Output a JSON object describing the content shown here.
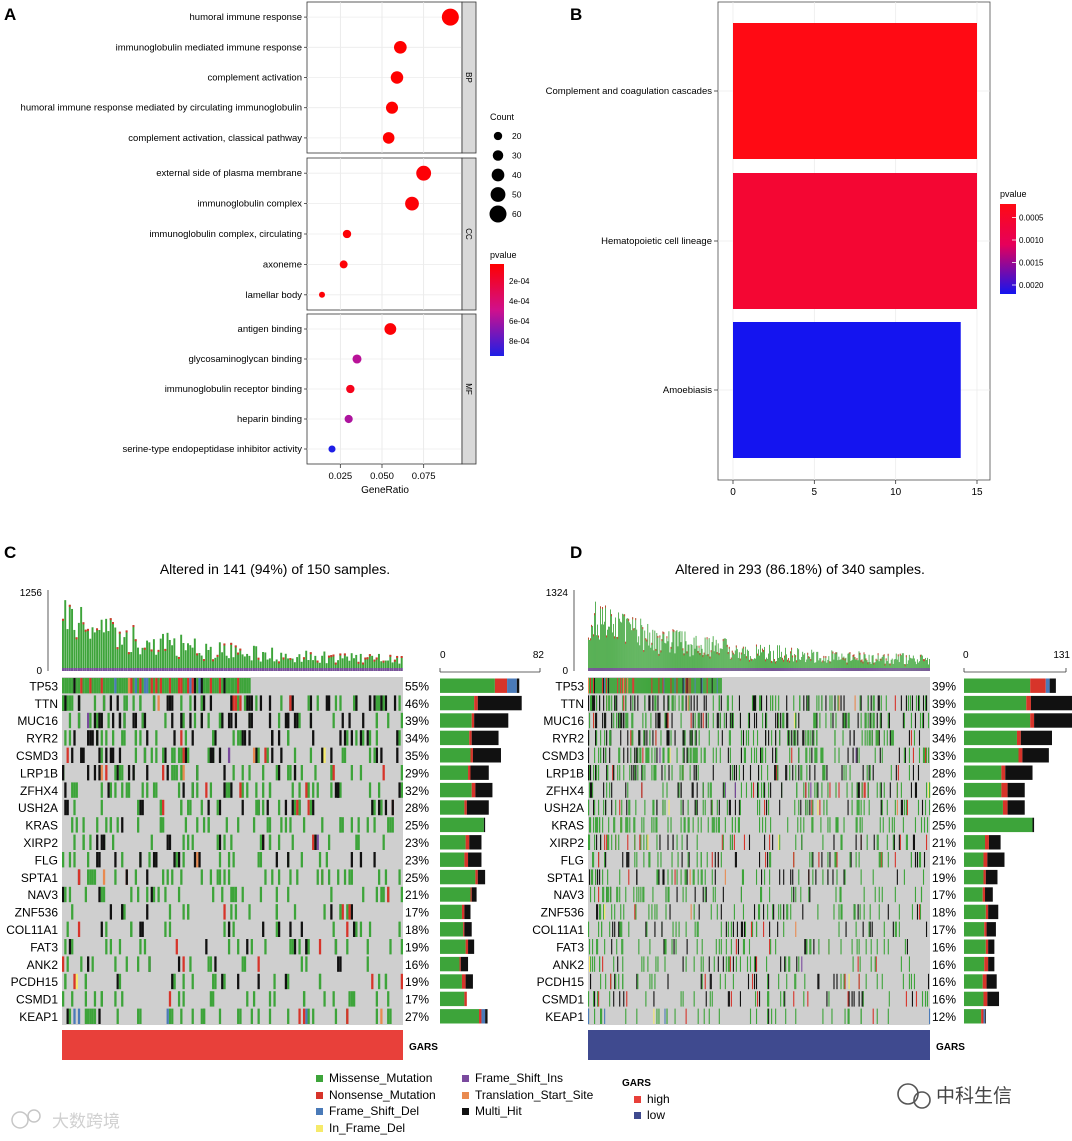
{
  "panels": {
    "A": "A",
    "B": "B",
    "C": "C",
    "D": "D"
  },
  "chart_data": [
    {
      "type": "scatter",
      "panel": "A",
      "title": "",
      "xlabel": "GeneRatio",
      "ylabel": "",
      "xticks": [
        "0.025",
        "0.050",
        "0.075"
      ],
      "xtick_values": [
        0.025,
        0.05,
        0.075
      ],
      "xlim": [
        0.005,
        0.098
      ],
      "facets": [
        {
          "name": "BP",
          "items": [
            {
              "term": "humoral immune response",
              "ratio": 0.091,
              "count": 60,
              "p": 3e-05
            },
            {
              "term": "immunoglobulin mediated immune response",
              "ratio": 0.061,
              "count": 40,
              "p": 3e-05
            },
            {
              "term": "complement activation",
              "ratio": 0.059,
              "count": 39,
              "p": 3e-05
            },
            {
              "term": "humoral immune response mediated by circulating immunoglobulin",
              "ratio": 0.056,
              "count": 37,
              "p": 3e-05
            },
            {
              "term": "complement activation, classical pathway",
              "ratio": 0.054,
              "count": 35,
              "p": 3e-05
            }
          ]
        },
        {
          "name": "CC",
          "items": [
            {
              "term": "external side of plasma membrane",
              "ratio": 0.075,
              "count": 50,
              "p": 5e-05
            },
            {
              "term": "immunoglobulin complex",
              "ratio": 0.068,
              "count": 45,
              "p": 5e-05
            },
            {
              "term": "immunoglobulin complex, circulating",
              "ratio": 0.029,
              "count": 20,
              "p": 5e-05
            },
            {
              "term": "axoneme",
              "ratio": 0.027,
              "count": 18,
              "p": 5e-05
            },
            {
              "term": "lamellar body",
              "ratio": 0.014,
              "count": 9,
              "p": 5e-05
            }
          ]
        },
        {
          "name": "MF",
          "items": [
            {
              "term": "antigen binding",
              "ratio": 0.055,
              "count": 36,
              "p": 5e-05
            },
            {
              "term": "glycosaminoglycan binding",
              "ratio": 0.035,
              "count": 23,
              "p": 0.00055
            },
            {
              "term": "immunoglobulin receptor binding",
              "ratio": 0.031,
              "count": 20,
              "p": 0.00012
            },
            {
              "term": "heparin binding",
              "ratio": 0.03,
              "count": 19,
              "p": 0.00058
            },
            {
              "term": "serine-type endopeptidase inhibitor activity",
              "ratio": 0.02,
              "count": 14,
              "p": 0.00095
            }
          ]
        }
      ],
      "size_legend": {
        "title": "Count",
        "values": [
          20,
          30,
          40,
          50,
          60
        ]
      },
      "color_legend": {
        "title": "pvalue",
        "labels": [
          "2e-04",
          "4e-04",
          "6e-04",
          "8e-04"
        ],
        "values": [
          0.0002,
          0.0004,
          0.0006,
          0.0008
        ],
        "range": [
          3e-05,
          0.00095
        ],
        "low_color": "#ff0000",
        "high_color": "#1e1ee6"
      }
    },
    {
      "type": "bar",
      "panel": "B",
      "orientation": "horizontal",
      "categories": [
        "Complement and coagulation cascades",
        "Hematopoietic cell lineage",
        "Amoebiasis"
      ],
      "values": [
        15,
        15,
        14
      ],
      "pvalues": [
        0.0002,
        0.0006,
        0.0022
      ],
      "xticks": [
        "0",
        "5",
        "10",
        "15"
      ],
      "xlim": [
        0,
        15.3
      ],
      "color_legend": {
        "title": "pvalue",
        "labels": [
          "0.0005",
          "0.0010",
          "0.0015",
          "0.0020"
        ],
        "values": [
          0.0005,
          0.001,
          0.0015,
          0.002
        ],
        "range": [
          0.0002,
          0.0022
        ]
      }
    },
    {
      "type": "heatmap",
      "panel": "C",
      "title": "Altered in 141 (94%) of 150 samples.",
      "tmb_max": "1256",
      "tmb_min": "0",
      "count_axis_min": "0",
      "count_axis_max": "82",
      "count_max": 82,
      "samples": 150,
      "group_label": "GARS",
      "group_color": "#e8403a",
      "genes": [
        {
          "gene": "TP53",
          "pct": "55%",
          "bar": [
            45,
            10,
            8,
            2
          ]
        },
        {
          "gene": "TTN",
          "pct": "46%",
          "bar": [
            28,
            3,
            0,
            36
          ]
        },
        {
          "gene": "MUC16",
          "pct": "39%",
          "bar": [
            26,
            2,
            0,
            28
          ]
        },
        {
          "gene": "RYR2",
          "pct": "34%",
          "bar": [
            24,
            2,
            0,
            22
          ]
        },
        {
          "gene": "CSMD3",
          "pct": "35%",
          "bar": [
            25,
            2,
            0,
            23
          ]
        },
        {
          "gene": "LRP1B",
          "pct": "29%",
          "bar": [
            23,
            2,
            0,
            15
          ]
        },
        {
          "gene": "ZFHX4",
          "pct": "32%",
          "bar": [
            26,
            3,
            0,
            14
          ]
        },
        {
          "gene": "USH2A",
          "pct": "28%",
          "bar": [
            20,
            2,
            0,
            18
          ]
        },
        {
          "gene": "KRAS",
          "pct": "25%",
          "bar": [
            36,
            0,
            0,
            1
          ]
        },
        {
          "gene": "XIRP2",
          "pct": "23%",
          "bar": [
            21,
            3,
            0,
            10
          ]
        },
        {
          "gene": "FLG",
          "pct": "23%",
          "bar": [
            20,
            3,
            0,
            11
          ]
        },
        {
          "gene": "SPTA1",
          "pct": "25%",
          "bar": [
            29,
            2,
            0,
            6
          ]
        },
        {
          "gene": "NAV3",
          "pct": "21%",
          "bar": [
            25,
            1,
            0,
            4
          ]
        },
        {
          "gene": "ZNF536",
          "pct": "17%",
          "bar": [
            18,
            2,
            0,
            5
          ]
        },
        {
          "gene": "COL11A1",
          "pct": "18%",
          "bar": [
            19,
            1,
            0,
            6
          ]
        },
        {
          "gene": "FAT3",
          "pct": "19%",
          "bar": [
            21,
            2,
            0,
            5
          ]
        },
        {
          "gene": "ANK2",
          "pct": "16%",
          "bar": [
            16,
            1,
            0,
            6
          ]
        },
        {
          "gene": "PCDH15",
          "pct": "19%",
          "bar": [
            18,
            3,
            0,
            6
          ]
        },
        {
          "gene": "CSMD1",
          "pct": "17%",
          "bar": [
            20,
            2,
            0,
            0
          ]
        },
        {
          "gene": "KEAP1",
          "pct": "27%",
          "bar": [
            32,
            2,
            3,
            2
          ]
        }
      ]
    },
    {
      "type": "heatmap",
      "panel": "D",
      "title": "Altered in 293 (86.18%) of 340 samples.",
      "tmb_max": "1324",
      "tmb_min": "0",
      "count_axis_min": "0",
      "count_axis_max": "131",
      "count_max": 131,
      "samples": 340,
      "group_label": "GARS",
      "group_color": "#3f4a8f",
      "genes": [
        {
          "gene": "TP53",
          "pct": "39%",
          "bar": [
            85,
            20,
            5,
            8
          ]
        },
        {
          "gene": "TTN",
          "pct": "39%",
          "bar": [
            80,
            6,
            0,
            68
          ]
        },
        {
          "gene": "MUC16",
          "pct": "39%",
          "bar": [
            85,
            5,
            0,
            62
          ]
        },
        {
          "gene": "RYR2",
          "pct": "34%",
          "bar": [
            68,
            5,
            0,
            40
          ]
        },
        {
          "gene": "CSMD3",
          "pct": "33%",
          "bar": [
            70,
            5,
            0,
            34
          ]
        },
        {
          "gene": "LRP1B",
          "pct": "28%",
          "bar": [
            48,
            5,
            0,
            35
          ]
        },
        {
          "gene": "ZFHX4",
          "pct": "26%",
          "bar": [
            48,
            8,
            0,
            22
          ]
        },
        {
          "gene": "USH2A",
          "pct": "26%",
          "bar": [
            50,
            6,
            0,
            22
          ]
        },
        {
          "gene": "KRAS",
          "pct": "25%",
          "bar": [
            88,
            0,
            0,
            2
          ]
        },
        {
          "gene": "XIRP2",
          "pct": "21%",
          "bar": [
            27,
            5,
            0,
            15
          ]
        },
        {
          "gene": "FLG",
          "pct": "21%",
          "bar": [
            25,
            5,
            0,
            22
          ]
        },
        {
          "gene": "SPTA1",
          "pct": "19%",
          "bar": [
            25,
            3,
            0,
            15
          ]
        },
        {
          "gene": "NAV3",
          "pct": "17%",
          "bar": [
            24,
            3,
            0,
            10
          ]
        },
        {
          "gene": "ZNF536",
          "pct": "18%",
          "bar": [
            28,
            3,
            0,
            13
          ]
        },
        {
          "gene": "COL11A1",
          "pct": "17%",
          "bar": [
            26,
            3,
            0,
            12
          ]
        },
        {
          "gene": "FAT3",
          "pct": "16%",
          "bar": [
            28,
            3,
            0,
            8
          ]
        },
        {
          "gene": "ANK2",
          "pct": "16%",
          "bar": [
            26,
            5,
            0,
            8
          ]
        },
        {
          "gene": "PCDH15",
          "pct": "16%",
          "bar": [
            24,
            5,
            0,
            13
          ]
        },
        {
          "gene": "CSMD1",
          "pct": "16%",
          "bar": [
            25,
            5,
            0,
            15
          ]
        },
        {
          "gene": "KEAP1",
          "pct": "12%",
          "bar": [
            22,
            3,
            2,
            1
          ]
        }
      ]
    }
  ],
  "legend": {
    "mutations": [
      {
        "label": "Missense_Mutation",
        "color": "#3da43a"
      },
      {
        "label": "Nonsense_Mutation",
        "color": "#d7342a"
      },
      {
        "label": "Frame_Shift_Del",
        "color": "#4a7ab8"
      },
      {
        "label": "In_Frame_Del",
        "color": "#f6ea6a"
      },
      {
        "label": "Frame_Shift_Ins",
        "color": "#7a4a9e"
      },
      {
        "label": "Translation_Start_Site",
        "color": "#e98a50"
      },
      {
        "label": "Multi_Hit",
        "color": "#111111"
      }
    ],
    "group_title": "GARS",
    "groups": [
      {
        "label": "high",
        "color": "#e8403a"
      },
      {
        "label": "low",
        "color": "#3f4a8f"
      }
    ]
  },
  "watermarks": {
    "left": "大数跨境",
    "right": "中科生信"
  }
}
